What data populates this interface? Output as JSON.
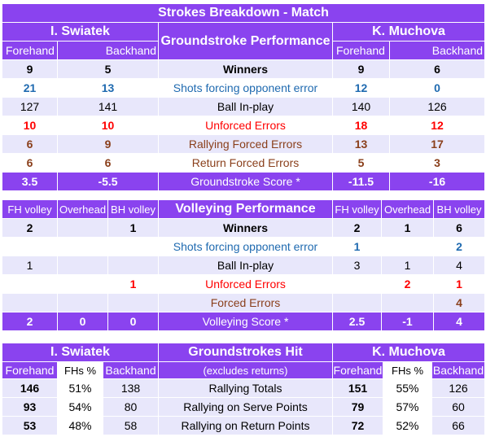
{
  "groundstroke": {
    "title": "Strokes Breakdown - Match",
    "player1": "I. Swiatek",
    "player2": "K. Muchova",
    "center_header": "Groundstroke Performance",
    "col_fh": "Forehand",
    "col_bh": "Backhand",
    "rows": [
      {
        "label": "Winners",
        "p1fh": "9",
        "p1bh": "5",
        "p2fh": "9",
        "p2bh": "6"
      },
      {
        "label": "Shots forcing opponent error",
        "p1fh": "21",
        "p1bh": "13",
        "p2fh": "12",
        "p2bh": "0"
      },
      {
        "label": "Ball In-play",
        "p1fh": "127",
        "p1bh": "141",
        "p2fh": "140",
        "p2bh": "126"
      },
      {
        "label": "Unforced Errors",
        "p1fh": "10",
        "p1bh": "10",
        "p2fh": "18",
        "p2bh": "12"
      },
      {
        "label": "Rallying Forced Errors",
        "p1fh": "6",
        "p1bh": "9",
        "p2fh": "13",
        "p2bh": "17"
      },
      {
        "label": "Return Forced Errors",
        "p1fh": "6",
        "p1bh": "6",
        "p2fh": "5",
        "p2bh": "3"
      }
    ],
    "score": {
      "label": "Groundstroke Score *",
      "p1fh": "3.5",
      "p1bh": "-5.5",
      "p2fh": "-11.5",
      "p2bh": "-16"
    }
  },
  "volley": {
    "center_header": "Volleying Performance",
    "col_fhv": "FH volley",
    "col_oh": "Overhead",
    "col_bhv": "BH volley",
    "rows": [
      {
        "label": "Winners",
        "p1a": "2",
        "p1b": "",
        "p1c": "1",
        "p2a": "2",
        "p2b": "1",
        "p2c": "6"
      },
      {
        "label": "Shots forcing opponent error",
        "p1a": "",
        "p1b": "",
        "p1c": "",
        "p2a": "1",
        "p2b": "",
        "p2c": "2"
      },
      {
        "label": "Ball In-play",
        "p1a": "1",
        "p1b": "",
        "p1c": "",
        "p2a": "3",
        "p2b": "1",
        "p2c": "4"
      },
      {
        "label": "Unforced Errors",
        "p1a": "",
        "p1b": "",
        "p1c": "1",
        "p2a": "",
        "p2b": "2",
        "p2c": "1"
      },
      {
        "label": "Forced Errors",
        "p1a": "",
        "p1b": "",
        "p1c": "",
        "p2a": "",
        "p2b": "",
        "p2c": "4"
      }
    ],
    "score": {
      "label": "Volleying Score *",
      "p1a": "2",
      "p1b": "0",
      "p1c": "0",
      "p2a": "2.5",
      "p2b": "-1",
      "p2c": "4"
    }
  },
  "hits": {
    "player1": "I. Swiatek",
    "player2": "K. Muchova",
    "center_header": "Groundstrokes Hit",
    "center_sub": "(excludes returns)",
    "col_fh": "Forehand",
    "col_pct": "FHs %",
    "col_bh": "Backhand",
    "rows": [
      {
        "label": "Rallying Totals",
        "p1fh": "146",
        "p1pct": "51%",
        "p1bh": "138",
        "p2fh": "151",
        "p2pct": "55%",
        "p2bh": "126"
      },
      {
        "label": "Rallying on Serve Points",
        "p1fh": "93",
        "p1pct": "54%",
        "p1bh": "80",
        "p2fh": "79",
        "p2pct": "57%",
        "p2bh": "60"
      },
      {
        "label": "Rallying on Return Points",
        "p1fh": "53",
        "p1pct": "48%",
        "p1bh": "58",
        "p2fh": "72",
        "p2pct": "52%",
        "p2bh": "66"
      }
    ]
  }
}
